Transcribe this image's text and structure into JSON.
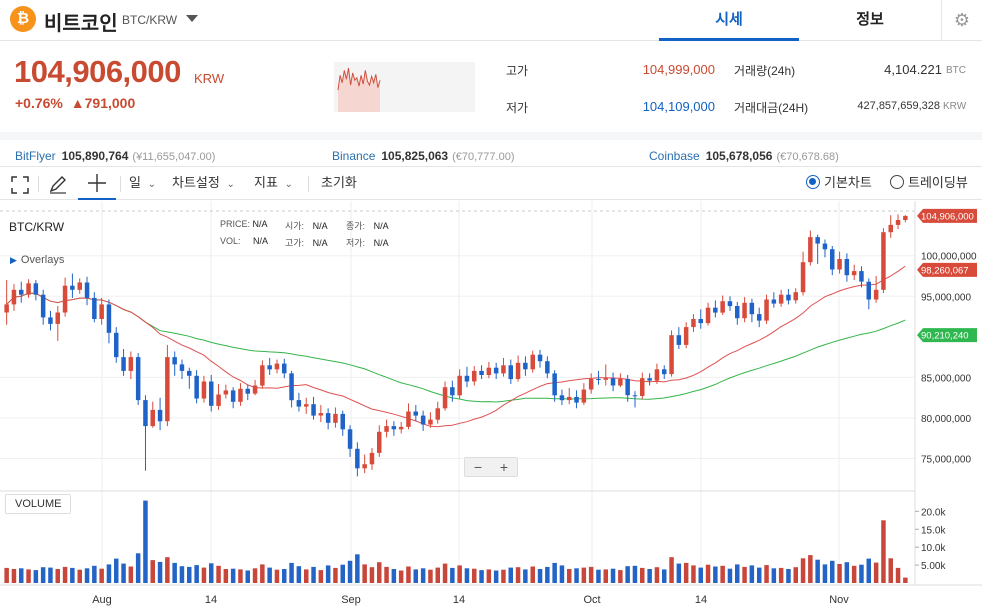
{
  "header": {
    "coin_icon": "bitcoin-icon",
    "coin_symbol_glyph": "₿",
    "coin_name": "비트코인",
    "coin_code": "BTC/KRW",
    "tabs": [
      "시세",
      "정보"
    ],
    "settings_icon": "gear-icon"
  },
  "summary": {
    "price": "104,906,000",
    "unit": "KRW",
    "change_pct": "+0.76%",
    "change_amount": "▲791,000",
    "high_label": "고가",
    "high_value": "104,999,000",
    "low_label": "저가",
    "low_value": "104,109,000",
    "volume_label": "거래량(24h)",
    "volume_value": "4,104.221",
    "volume_unit": "BTC",
    "turnover_label": "거래대금(24H)",
    "turnover_value": "427,857,659,328",
    "turnover_unit": "KRW",
    "mini_chart": [
      70,
      40,
      55,
      30,
      48,
      25,
      60,
      35,
      50,
      45,
      62,
      40,
      58,
      30,
      52,
      60,
      42,
      55,
      38,
      65,
      50
    ]
  },
  "exchanges": [
    {
      "name": "BitFlyer",
      "price": "105,890,764",
      "diff": "(¥11,655,047.00)"
    },
    {
      "name": "Binance",
      "price": "105,825,063",
      "diff": "(€70,777.00)"
    },
    {
      "name": "Coinbase",
      "price": "105,678,056",
      "diff": "(€70,678.68)"
    }
  ],
  "toolbar": {
    "fullscreen_icon": "fullscreen-icon",
    "draw_icon": "pencil-icon",
    "crosshair_icon": "crosshair-icon",
    "period": "일",
    "chart_settings": "차트설정",
    "indicators": "지표",
    "reset": "초기화",
    "mode_basic": "기본차트",
    "mode_tradingview": "트레이딩뷰"
  },
  "chart_data": {
    "type": "candlestick",
    "symbol": "BTC/KRW",
    "overlays_label": "Overlays",
    "ohlc_labels": {
      "price": "PRICE:",
      "open": "시가:",
      "close": "종가:",
      "vol": "VOL:",
      "high": "고가:",
      "low": "저가:",
      "na": "N/A"
    },
    "volume_label": "VOLUME",
    "x_ticks": [
      "Aug",
      "14",
      "Sep",
      "14",
      "Oct",
      "14",
      "Nov"
    ],
    "y_ticks": [
      "100,000,000",
      "95,000,000",
      "85,000,000",
      "80,000,000",
      "75,000,000"
    ],
    "y_range": [
      71000000,
      106500000
    ],
    "volume_ticks": [
      "20.0k",
      "15.0k",
      "10.0k",
      "5.00k"
    ],
    "volume_range": [
      0,
      24000
    ],
    "price_tags": [
      {
        "label": "104,906,000",
        "value": 104906000,
        "color": "#d84a3a"
      },
      {
        "label": "98,260,067",
        "value": 98260067,
        "color": "#d84a3a"
      },
      {
        "label": "90,210,240",
        "value": 90210240,
        "color": "#2fb84f"
      }
    ],
    "ma_short_color": "#e05050",
    "ma_long_color": "#33b54a",
    "candles": [
      [
        93000000,
        94000000,
        97000000,
        91500000,
        4200
      ],
      [
        94000000,
        95800000,
        96500000,
        93200000,
        3900
      ],
      [
        95800000,
        95200000,
        96800000,
        94200000,
        4100
      ],
      [
        95200000,
        96600000,
        97100000,
        94800000,
        3800
      ],
      [
        96600000,
        95200000,
        97000000,
        94500000,
        3600
      ],
      [
        95200000,
        92400000,
        95800000,
        91500000,
        4400
      ],
      [
        92400000,
        91600000,
        93200000,
        90800000,
        4300
      ],
      [
        91600000,
        93000000,
        93800000,
        89500000,
        3900
      ],
      [
        93000000,
        96300000,
        97300000,
        92500000,
        4500
      ],
      [
        96300000,
        95800000,
        97800000,
        94800000,
        4200
      ],
      [
        95800000,
        96700000,
        97200000,
        95300000,
        3700
      ],
      [
        96700000,
        94800000,
        97400000,
        93900000,
        4100
      ],
      [
        94800000,
        92200000,
        95500000,
        91800000,
        4800
      ],
      [
        92200000,
        94000000,
        94800000,
        91500000,
        4000
      ],
      [
        94000000,
        90500000,
        94600000,
        89200000,
        5200
      ],
      [
        90500000,
        87500000,
        91200000,
        86800000,
        6800
      ],
      [
        87500000,
        85800000,
        88500000,
        85200000,
        5400
      ],
      [
        85800000,
        87500000,
        88200000,
        84800000,
        4600
      ],
      [
        87500000,
        82200000,
        88000000,
        81600000,
        8300
      ],
      [
        82200000,
        79000000,
        82800000,
        73500000,
        23000
      ],
      [
        79000000,
        81000000,
        82000000,
        78800000,
        6400
      ],
      [
        81000000,
        79600000,
        82500000,
        78500000,
        5900
      ],
      [
        79600000,
        87500000,
        89000000,
        79000000,
        7200
      ],
      [
        87500000,
        86600000,
        88200000,
        85200000,
        5600
      ],
      [
        86600000,
        85800000,
        87200000,
        84800000,
        4700
      ],
      [
        85800000,
        85200000,
        86200000,
        83600000,
        4500
      ],
      [
        85200000,
        82400000,
        85900000,
        81800000,
        5000
      ],
      [
        82400000,
        84500000,
        85200000,
        81900000,
        4300
      ],
      [
        84500000,
        81500000,
        85300000,
        80800000,
        5500
      ],
      [
        81500000,
        82900000,
        84200000,
        81000000,
        4800
      ],
      [
        82900000,
        83400000,
        84100000,
        82400000,
        3900
      ],
      [
        83400000,
        82000000,
        83800000,
        81200000,
        4000
      ],
      [
        82000000,
        83600000,
        84300000,
        81500000,
        3800
      ],
      [
        83600000,
        83000000,
        84100000,
        82200000,
        3500
      ],
      [
        83000000,
        84000000,
        84700000,
        82800000,
        4100
      ],
      [
        84000000,
        86500000,
        87100000,
        83600000,
        5200
      ],
      [
        86500000,
        86000000,
        87400000,
        85300000,
        4300
      ],
      [
        86000000,
        86700000,
        87200000,
        85500000,
        3700
      ],
      [
        86700000,
        85500000,
        87300000,
        84900000,
        3900
      ],
      [
        85500000,
        82200000,
        85800000,
        81300000,
        5600
      ],
      [
        82200000,
        81400000,
        83100000,
        80800000,
        4700
      ],
      [
        81400000,
        81700000,
        82500000,
        80500000,
        3800
      ],
      [
        81700000,
        80300000,
        82600000,
        79800000,
        4500
      ],
      [
        80300000,
        80600000,
        81600000,
        79500000,
        3600
      ],
      [
        80600000,
        79400000,
        81200000,
        78600000,
        4900
      ],
      [
        79400000,
        80500000,
        81300000,
        78800000,
        4200
      ],
      [
        80500000,
        78600000,
        80900000,
        77800000,
        5100
      ],
      [
        78600000,
        76200000,
        79100000,
        75200000,
        6200
      ],
      [
        76200000,
        73800000,
        77000000,
        72800000,
        8000
      ],
      [
        73800000,
        74300000,
        75500000,
        73200000,
        5200
      ],
      [
        74300000,
        75700000,
        76300000,
        73600000,
        4400
      ],
      [
        75700000,
        78300000,
        79100000,
        75200000,
        5800
      ],
      [
        78300000,
        79000000,
        79800000,
        77600000,
        4500
      ],
      [
        79000000,
        78600000,
        79600000,
        77800000,
        3900
      ],
      [
        78600000,
        78900000,
        79500000,
        78100000,
        3500
      ],
      [
        78900000,
        80800000,
        81800000,
        78600000,
        4600
      ],
      [
        80800000,
        80300000,
        81600000,
        79600000,
        3800
      ],
      [
        80300000,
        79200000,
        80900000,
        78400000,
        4100
      ],
      [
        79200000,
        79800000,
        80700000,
        78800000,
        3700
      ],
      [
        79800000,
        81200000,
        82000000,
        79300000,
        4300
      ],
      [
        81200000,
        83800000,
        84500000,
        80900000,
        5400
      ],
      [
        83800000,
        82800000,
        84600000,
        82000000,
        4200
      ],
      [
        82800000,
        85200000,
        86000000,
        82400000,
        4900
      ],
      [
        85200000,
        84500000,
        86300000,
        83800000,
        4100
      ],
      [
        84500000,
        85800000,
        86400000,
        84000000,
        4000
      ],
      [
        85800000,
        85300000,
        86500000,
        84800000,
        3600
      ],
      [
        85300000,
        86200000,
        86900000,
        84900000,
        3800
      ],
      [
        86200000,
        85500000,
        86800000,
        84800000,
        3500
      ],
      [
        85500000,
        86500000,
        87400000,
        85100000,
        3700
      ],
      [
        86500000,
        84800000,
        87200000,
        84200000,
        4300
      ],
      [
        84800000,
        86800000,
        87700000,
        84500000,
        4400
      ],
      [
        86800000,
        86000000,
        87600000,
        85200000,
        3800
      ],
      [
        86000000,
        87800000,
        88300000,
        85600000,
        4600
      ],
      [
        87800000,
        87000000,
        88400000,
        86200000,
        3900
      ],
      [
        87000000,
        85500000,
        87600000,
        84900000,
        4500
      ],
      [
        85500000,
        82800000,
        85900000,
        82000000,
        5600
      ],
      [
        82800000,
        82200000,
        83500000,
        81600000,
        4900
      ],
      [
        82200000,
        82600000,
        83700000,
        81700000,
        3900
      ],
      [
        82600000,
        81900000,
        83400000,
        81200000,
        4100
      ],
      [
        81900000,
        83500000,
        84300000,
        81600000,
        4300
      ],
      [
        83500000,
        84800000,
        85500000,
        83000000,
        4500
      ],
      [
        84800000,
        84700000,
        85800000,
        84100000,
        3700
      ],
      [
        84700000,
        84900000,
        86600000,
        84000000,
        3800
      ],
      [
        84900000,
        84000000,
        85600000,
        83300000,
        4000
      ],
      [
        84000000,
        84800000,
        85500000,
        83800000,
        3600
      ],
      [
        84800000,
        82800000,
        85300000,
        82000000,
        4700
      ],
      [
        82800000,
        82700000,
        83300000,
        81300000,
        4800
      ],
      [
        82700000,
        84900000,
        85600000,
        82300000,
        4200
      ],
      [
        84900000,
        84600000,
        85500000,
        84000000,
        3900
      ],
      [
        84600000,
        86000000,
        86700000,
        84200000,
        4400
      ],
      [
        86000000,
        85400000,
        86500000,
        84800000,
        3800
      ],
      [
        85400000,
        90200000,
        90800000,
        85100000,
        7200
      ],
      [
        90200000,
        89000000,
        91200000,
        88500000,
        5400
      ],
      [
        89000000,
        91200000,
        91800000,
        88600000,
        5600
      ],
      [
        91200000,
        92200000,
        92800000,
        90600000,
        4900
      ],
      [
        92200000,
        91700000,
        93400000,
        91000000,
        4300
      ],
      [
        91700000,
        93600000,
        94200000,
        91400000,
        5100
      ],
      [
        93600000,
        93000000,
        94500000,
        92400000,
        4600
      ],
      [
        93000000,
        94400000,
        95100000,
        92700000,
        4800
      ],
      [
        94400000,
        93800000,
        95000000,
        93200000,
        4000
      ],
      [
        93800000,
        92300000,
        94300000,
        91500000,
        5200
      ],
      [
        92300000,
        94200000,
        94900000,
        91800000,
        4500
      ],
      [
        94200000,
        92800000,
        94700000,
        91800000,
        4900
      ],
      [
        92800000,
        92000000,
        93600000,
        91200000,
        4300
      ],
      [
        92000000,
        94600000,
        95200000,
        91600000,
        5000
      ],
      [
        94600000,
        94100000,
        95500000,
        93600000,
        4100
      ],
      [
        94100000,
        95200000,
        95800000,
        93700000,
        4200
      ],
      [
        95200000,
        94500000,
        95900000,
        94000000,
        3900
      ],
      [
        94500000,
        95500000,
        96000000,
        94100000,
        4400
      ],
      [
        95500000,
        99200000,
        100500000,
        95100000,
        6900
      ],
      [
        99200000,
        102300000,
        103100000,
        98800000,
        7800
      ],
      [
        102300000,
        101500000,
        102600000,
        99000000,
        6500
      ],
      [
        101500000,
        100800000,
        102000000,
        99800000,
        5200
      ],
      [
        100800000,
        98300000,
        101200000,
        97600000,
        6200
      ],
      [
        98300000,
        99600000,
        100500000,
        97800000,
        5300
      ],
      [
        99600000,
        97600000,
        100300000,
        96800000,
        5800
      ],
      [
        97600000,
        98100000,
        98900000,
        97000000,
        4800
      ],
      [
        98100000,
        96800000,
        98700000,
        96100000,
        5100
      ],
      [
        96800000,
        94600000,
        97200000,
        93400000,
        6800
      ],
      [
        94600000,
        95800000,
        97500000,
        94200000,
        5700
      ],
      [
        95800000,
        102900000,
        103400000,
        95400000,
        17500
      ],
      [
        102900000,
        103800000,
        105000000,
        102200000,
        6900
      ],
      [
        103800000,
        104400000,
        105100000,
        103300000,
        4200
      ],
      [
        104400000,
        104906000,
        104999000,
        104109000,
        1500
      ]
    ]
  }
}
